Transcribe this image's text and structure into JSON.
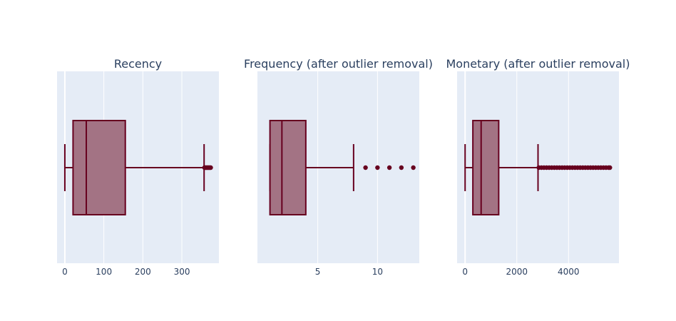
{
  "figure": {
    "plot_bgcolor": "#e5ecf6",
    "gridcolor": "#ffffff",
    "box_line_color": "#67001f",
    "box_fill_color": "#a37384",
    "text_color": "#2a3f5f"
  },
  "chart_data": [
    {
      "type": "box",
      "orientation": "horizontal",
      "title": "Recency",
      "xlim": [
        -20,
        395
      ],
      "xticks": [
        0,
        100,
        200,
        300
      ],
      "tick_labels": [
        "0",
        "100",
        "200",
        "300"
      ],
      "grid": true,
      "stats": {
        "lower_fence": 0,
        "q1": 21,
        "median": 55,
        "q3": 155,
        "upper_fence": 357
      },
      "outliers": [
        358,
        360,
        362,
        364,
        366,
        368,
        370,
        372,
        374
      ]
    },
    {
      "type": "box",
      "orientation": "horizontal",
      "title": "Frequency (after outlier removal)",
      "xlim": [
        -0.05,
        13.5
      ],
      "xticks": [
        5,
        10
      ],
      "tick_labels": [
        "5",
        "10"
      ],
      "grid": true,
      "stats": {
        "lower_fence": 1,
        "q1": 1,
        "median": 2,
        "q3": 4,
        "upper_fence": 8
      },
      "outliers": [
        9,
        10,
        11,
        12,
        13
      ]
    },
    {
      "type": "box",
      "orientation": "horizontal",
      "title": "Monetary (after outlier removal)",
      "xlim": [
        -310,
        5950
      ],
      "xticks": [
        0,
        2000,
        4000
      ],
      "tick_labels": [
        "0",
        "2000",
        "4000"
      ],
      "grid": true,
      "stats": {
        "lower_fence": 0,
        "q1": 300,
        "median": 620,
        "q3": 1300,
        "upper_fence": 2820
      },
      "outliers": [
        2850,
        2950,
        3050,
        3150,
        3250,
        3350,
        3450,
        3550,
        3650,
        3750,
        3850,
        3950,
        4050,
        4150,
        4250,
        4350,
        4450,
        4550,
        4650,
        4750,
        4850,
        4950,
        5050,
        5150,
        5250,
        5350,
        5450,
        5550,
        5600
      ]
    }
  ]
}
